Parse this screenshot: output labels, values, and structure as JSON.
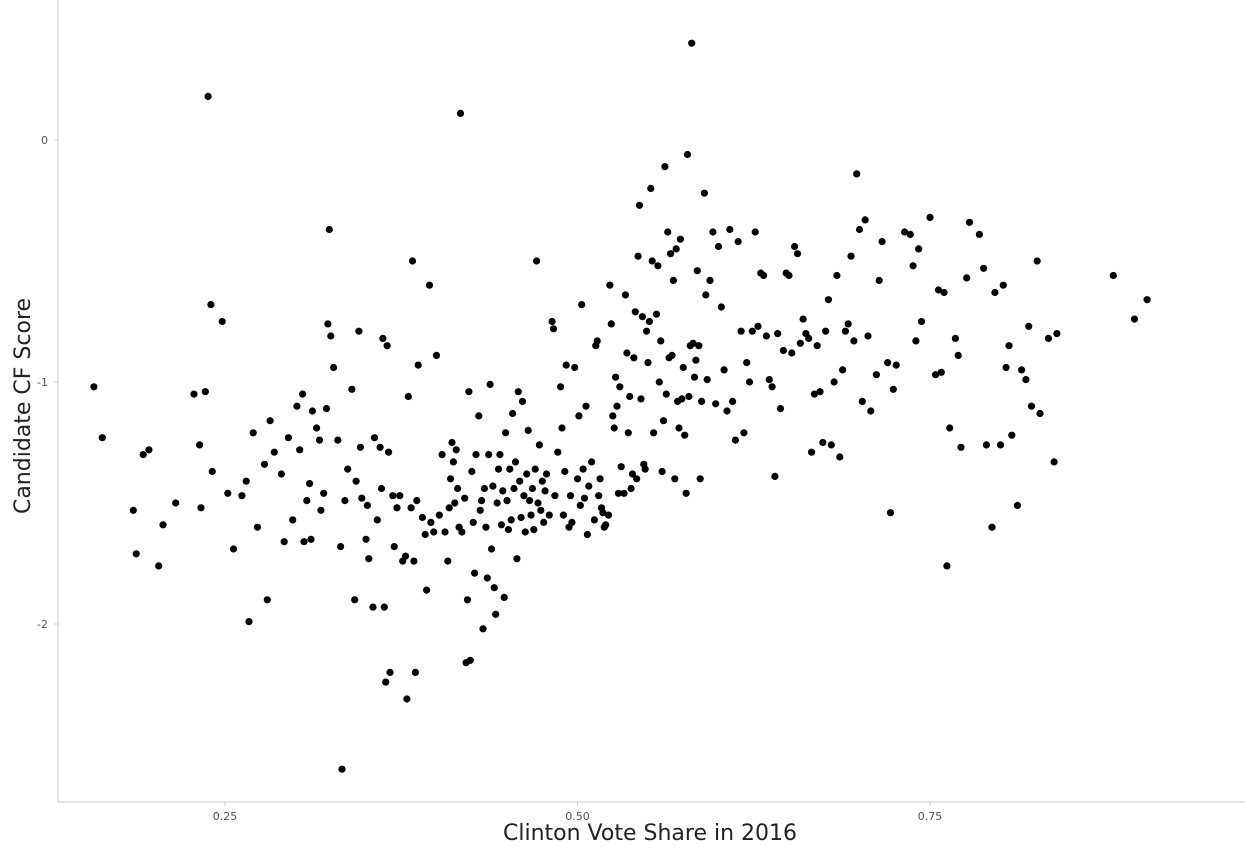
{
  "chart_data": {
    "type": "scatter",
    "title": "",
    "xlabel": "Clinton Vote Share in 2016",
    "ylabel": "Candidate CF Score",
    "xlim": [
      0.12,
      0.96
    ],
    "ylim": [
      -2.75,
      0.45
    ],
    "x_ticks": [
      0.25,
      0.5,
      0.75
    ],
    "x_tick_labels": [
      "0.25",
      "0.50",
      "0.75"
    ],
    "y_ticks": [
      0,
      -1,
      -2
    ],
    "y_tick_labels": [
      "0",
      "-1",
      "-2"
    ],
    "grid": false,
    "legend": "none",
    "point_color": "#000000",
    "points": [
      [
        0.157,
        -1.02
      ],
      [
        0.163,
        -1.23
      ],
      [
        0.185,
        -1.53
      ],
      [
        0.187,
        -1.71
      ],
      [
        0.192,
        -1.3
      ],
      [
        0.196,
        -1.28
      ],
      [
        0.203,
        -1.76
      ],
      [
        0.206,
        -1.59
      ],
      [
        0.215,
        -1.5
      ],
      [
        0.228,
        -1.05
      ],
      [
        0.232,
        -1.26
      ],
      [
        0.233,
        -1.52
      ],
      [
        0.236,
        -1.04
      ],
      [
        0.238,
        0.18
      ],
      [
        0.24,
        -0.68
      ],
      [
        0.241,
        -1.37
      ],
      [
        0.248,
        -0.75
      ],
      [
        0.252,
        -1.46
      ],
      [
        0.256,
        -1.69
      ],
      [
        0.262,
        -1.47
      ],
      [
        0.265,
        -1.41
      ],
      [
        0.267,
        -1.99
      ],
      [
        0.27,
        -1.21
      ],
      [
        0.273,
        -1.6
      ],
      [
        0.278,
        -1.34
      ],
      [
        0.28,
        -1.9
      ],
      [
        0.282,
        -1.16
      ],
      [
        0.285,
        -1.29
      ],
      [
        0.29,
        -1.38
      ],
      [
        0.292,
        -1.66
      ],
      [
        0.295,
        -1.23
      ],
      [
        0.298,
        -1.57
      ],
      [
        0.301,
        -1.1
      ],
      [
        0.303,
        -1.28
      ],
      [
        0.305,
        -1.05
      ],
      [
        0.306,
        -1.66
      ],
      [
        0.308,
        -1.49
      ],
      [
        0.31,
        -1.42
      ],
      [
        0.311,
        -1.65
      ],
      [
        0.312,
        -1.12
      ],
      [
        0.315,
        -1.19
      ],
      [
        0.317,
        -1.24
      ],
      [
        0.318,
        -1.53
      ],
      [
        0.32,
        -1.46
      ],
      [
        0.322,
        -1.11
      ],
      [
        0.323,
        -0.76
      ],
      [
        0.324,
        -0.37
      ],
      [
        0.325,
        -0.81
      ],
      [
        0.327,
        -0.94
      ],
      [
        0.33,
        -1.24
      ],
      [
        0.332,
        -1.68
      ],
      [
        0.333,
        -2.6
      ],
      [
        0.335,
        -1.49
      ],
      [
        0.337,
        -1.36
      ],
      [
        0.34,
        -1.03
      ],
      [
        0.342,
        -1.9
      ],
      [
        0.343,
        -1.41
      ],
      [
        0.345,
        -0.79
      ],
      [
        0.346,
        -1.27
      ],
      [
        0.347,
        -1.48
      ],
      [
        0.35,
        -1.65
      ],
      [
        0.351,
        -1.51
      ],
      [
        0.352,
        -1.73
      ],
      [
        0.355,
        -1.93
      ],
      [
        0.356,
        -1.23
      ],
      [
        0.358,
        -1.57
      ],
      [
        0.36,
        -1.27
      ],
      [
        0.361,
        -1.44
      ],
      [
        0.362,
        -0.82
      ],
      [
        0.363,
        -1.93
      ],
      [
        0.364,
        -2.24
      ],
      [
        0.365,
        -0.85
      ],
      [
        0.366,
        -1.29
      ],
      [
        0.367,
        -2.2
      ],
      [
        0.369,
        -1.47
      ],
      [
        0.37,
        -1.68
      ],
      [
        0.372,
        -1.52
      ],
      [
        0.374,
        -1.47
      ],
      [
        0.376,
        -1.74
      ],
      [
        0.378,
        -1.72
      ],
      [
        0.379,
        -2.31
      ],
      [
        0.38,
        -1.06
      ],
      [
        0.382,
        -1.52
      ],
      [
        0.383,
        -0.5
      ],
      [
        0.384,
        -1.74
      ],
      [
        0.385,
        -2.2
      ],
      [
        0.386,
        -1.49
      ],
      [
        0.387,
        -0.93
      ],
      [
        0.39,
        -1.56
      ],
      [
        0.392,
        -1.63
      ],
      [
        0.393,
        -1.86
      ],
      [
        0.395,
        -0.6
      ],
      [
        0.396,
        -1.58
      ],
      [
        0.398,
        -1.62
      ],
      [
        0.4,
        -0.89
      ],
      [
        0.402,
        -1.55
      ],
      [
        0.404,
        -1.3
      ],
      [
        0.406,
        -1.62
      ],
      [
        0.408,
        -1.74
      ],
      [
        0.409,
        -1.52
      ],
      [
        0.41,
        -1.4
      ],
      [
        0.411,
        -1.25
      ],
      [
        0.412,
        -1.33
      ],
      [
        0.413,
        -1.5
      ],
      [
        0.414,
        -1.28
      ],
      [
        0.415,
        -1.44
      ],
      [
        0.416,
        -1.6
      ],
      [
        0.417,
        0.11
      ],
      [
        0.418,
        -1.62
      ],
      [
        0.42,
        -1.48
      ],
      [
        0.421,
        -2.16
      ],
      [
        0.422,
        -1.9
      ],
      [
        0.423,
        -1.04
      ],
      [
        0.424,
        -2.15
      ],
      [
        0.425,
        -1.37
      ],
      [
        0.426,
        -1.58
      ],
      [
        0.427,
        -1.79
      ],
      [
        0.428,
        -1.3
      ],
      [
        0.43,
        -1.14
      ],
      [
        0.431,
        -1.53
      ],
      [
        0.432,
        -1.49
      ],
      [
        0.433,
        -2.02
      ],
      [
        0.434,
        -1.44
      ],
      [
        0.435,
        -1.6
      ],
      [
        0.436,
        -1.81
      ],
      [
        0.437,
        -1.3
      ],
      [
        0.438,
        -1.01
      ],
      [
        0.439,
        -1.69
      ],
      [
        0.44,
        -1.43
      ],
      [
        0.441,
        -1.85
      ],
      [
        0.442,
        -1.96
      ],
      [
        0.443,
        -1.5
      ],
      [
        0.444,
        -1.36
      ],
      [
        0.445,
        -1.3
      ],
      [
        0.446,
        -1.59
      ],
      [
        0.447,
        -1.45
      ],
      [
        0.448,
        -1.89
      ],
      [
        0.449,
        -1.21
      ],
      [
        0.45,
        -1.49
      ],
      [
        0.451,
        -1.61
      ],
      [
        0.452,
        -1.36
      ],
      [
        0.453,
        -1.57
      ],
      [
        0.454,
        -1.13
      ],
      [
        0.455,
        -1.44
      ],
      [
        0.456,
        -1.33
      ],
      [
        0.457,
        -1.73
      ],
      [
        0.458,
        -1.04
      ],
      [
        0.459,
        -1.41
      ],
      [
        0.46,
        -1.56
      ],
      [
        0.461,
        -1.08
      ],
      [
        0.462,
        -1.47
      ],
      [
        0.463,
        -1.62
      ],
      [
        0.464,
        -1.38
      ],
      [
        0.465,
        -1.2
      ],
      [
        0.466,
        -1.49
      ],
      [
        0.467,
        -1.55
      ],
      [
        0.468,
        -1.44
      ],
      [
        0.469,
        -1.61
      ],
      [
        0.47,
        -1.36
      ],
      [
        0.471,
        -0.5
      ],
      [
        0.472,
        -1.5
      ],
      [
        0.473,
        -1.26
      ],
      [
        0.474,
        -1.53
      ],
      [
        0.475,
        -1.41
      ],
      [
        0.476,
        -1.58
      ],
      [
        0.477,
        -1.45
      ],
      [
        0.478,
        -1.38
      ],
      [
        0.48,
        -1.55
      ],
      [
        0.482,
        -0.75
      ],
      [
        0.483,
        -0.78
      ],
      [
        0.484,
        -1.47
      ],
      [
        0.486,
        -1.29
      ],
      [
        0.488,
        -1.02
      ],
      [
        0.489,
        -1.19
      ],
      [
        0.49,
        -1.55
      ],
      [
        0.491,
        -1.37
      ],
      [
        0.492,
        -0.93
      ],
      [
        0.494,
        -1.6
      ],
      [
        0.495,
        -1.47
      ],
      [
        0.496,
        -1.58
      ],
      [
        0.498,
        -0.94
      ],
      [
        0.5,
        -1.4
      ],
      [
        0.501,
        -1.14
      ],
      [
        0.502,
        -1.51
      ],
      [
        0.503,
        -0.68
      ],
      [
        0.504,
        -1.36
      ],
      [
        0.505,
        -1.48
      ],
      [
        0.506,
        -1.1
      ],
      [
        0.507,
        -1.63
      ],
      [
        0.508,
        -1.43
      ],
      [
        0.51,
        -1.33
      ],
      [
        0.512,
        -1.57
      ],
      [
        0.513,
        -0.85
      ],
      [
        0.514,
        -0.83
      ],
      [
        0.515,
        -1.47
      ],
      [
        0.516,
        -1.4
      ],
      [
        0.517,
        -1.52
      ],
      [
        0.518,
        -1.54
      ],
      [
        0.519,
        -1.6
      ],
      [
        0.52,
        -1.59
      ],
      [
        0.522,
        -1.55
      ],
      [
        0.523,
        -0.6
      ],
      [
        0.524,
        -0.76
      ],
      [
        0.525,
        -1.14
      ],
      [
        0.526,
        -1.19
      ],
      [
        0.527,
        -0.98
      ],
      [
        0.528,
        -1.1
      ],
      [
        0.529,
        -1.46
      ],
      [
        0.53,
        -1.02
      ],
      [
        0.531,
        -1.35
      ],
      [
        0.533,
        -1.46
      ],
      [
        0.534,
        -0.64
      ],
      [
        0.535,
        -0.88
      ],
      [
        0.536,
        -1.21
      ],
      [
        0.537,
        -1.06
      ],
      [
        0.538,
        -1.44
      ],
      [
        0.539,
        -1.38
      ],
      [
        0.54,
        -0.9
      ],
      [
        0.541,
        -0.71
      ],
      [
        0.542,
        -1.4
      ],
      [
        0.543,
        -0.48
      ],
      [
        0.544,
        -0.27
      ],
      [
        0.545,
        -1.07
      ],
      [
        0.546,
        -0.73
      ],
      [
        0.547,
        -1.34
      ],
      [
        0.548,
        -1.36
      ],
      [
        0.549,
        -0.79
      ],
      [
        0.55,
        -0.92
      ],
      [
        0.551,
        -0.75
      ],
      [
        0.552,
        -0.2
      ],
      [
        0.553,
        -0.5
      ],
      [
        0.554,
        -1.21
      ],
      [
        0.556,
        -0.72
      ],
      [
        0.557,
        -0.52
      ],
      [
        0.558,
        -1.0
      ],
      [
        0.559,
        -0.83
      ],
      [
        0.56,
        -1.37
      ],
      [
        0.561,
        -1.16
      ],
      [
        0.562,
        -0.11
      ],
      [
        0.563,
        -1.05
      ],
      [
        0.564,
        -0.38
      ],
      [
        0.565,
        -0.9
      ],
      [
        0.566,
        -0.47
      ],
      [
        0.567,
        -0.89
      ],
      [
        0.568,
        -0.58
      ],
      [
        0.569,
        -1.4
      ],
      [
        0.57,
        -0.45
      ],
      [
        0.571,
        -1.08
      ],
      [
        0.572,
        -1.19
      ],
      [
        0.573,
        -0.41
      ],
      [
        0.574,
        -1.07
      ],
      [
        0.575,
        -0.94
      ],
      [
        0.576,
        -1.22
      ],
      [
        0.577,
        -1.46
      ],
      [
        0.578,
        -0.06
      ],
      [
        0.579,
        -1.06
      ],
      [
        0.58,
        -0.85
      ],
      [
        0.581,
        0.4
      ],
      [
        0.582,
        -0.84
      ],
      [
        0.583,
        -0.98
      ],
      [
        0.584,
        -0.91
      ],
      [
        0.585,
        -0.54
      ],
      [
        0.586,
        -0.85
      ],
      [
        0.587,
        -1.4
      ],
      [
        0.588,
        -1.08
      ],
      [
        0.59,
        -0.22
      ],
      [
        0.591,
        -0.64
      ],
      [
        0.592,
        -0.99
      ],
      [
        0.594,
        -0.58
      ],
      [
        0.596,
        -0.38
      ],
      [
        0.598,
        -1.09
      ],
      [
        0.6,
        -0.44
      ],
      [
        0.602,
        -0.69
      ],
      [
        0.604,
        -0.95
      ],
      [
        0.606,
        -1.12
      ],
      [
        0.608,
        -0.37
      ],
      [
        0.61,
        -1.08
      ],
      [
        0.612,
        -1.24
      ],
      [
        0.614,
        -0.42
      ],
      [
        0.616,
        -0.79
      ],
      [
        0.618,
        -1.21
      ],
      [
        0.62,
        -0.92
      ],
      [
        0.622,
        -1.0
      ],
      [
        0.624,
        -0.79
      ],
      [
        0.626,
        -0.38
      ],
      [
        0.628,
        -0.77
      ],
      [
        0.63,
        -0.55
      ],
      [
        0.632,
        -0.56
      ],
      [
        0.634,
        -0.81
      ],
      [
        0.636,
        -0.99
      ],
      [
        0.638,
        -1.02
      ],
      [
        0.64,
        -1.39
      ],
      [
        0.642,
        -0.8
      ],
      [
        0.644,
        -1.11
      ],
      [
        0.646,
        -0.87
      ],
      [
        0.648,
        -0.55
      ],
      [
        0.65,
        -0.56
      ],
      [
        0.652,
        -0.88
      ],
      [
        0.654,
        -0.44
      ],
      [
        0.656,
        -0.47
      ],
      [
        0.658,
        -0.84
      ],
      [
        0.66,
        -0.74
      ],
      [
        0.662,
        -0.8
      ],
      [
        0.664,
        -0.82
      ],
      [
        0.666,
        -1.29
      ],
      [
        0.668,
        -1.05
      ],
      [
        0.67,
        -0.85
      ],
      [
        0.672,
        -1.04
      ],
      [
        0.674,
        -1.25
      ],
      [
        0.676,
        -0.79
      ],
      [
        0.678,
        -0.66
      ],
      [
        0.68,
        -1.26
      ],
      [
        0.682,
        -1.0
      ],
      [
        0.684,
        -0.56
      ],
      [
        0.686,
        -1.31
      ],
      [
        0.688,
        -0.95
      ],
      [
        0.69,
        -0.79
      ],
      [
        0.692,
        -0.76
      ],
      [
        0.694,
        -0.48
      ],
      [
        0.696,
        -0.83
      ],
      [
        0.698,
        -0.14
      ],
      [
        0.7,
        -0.37
      ],
      [
        0.702,
        -1.08
      ],
      [
        0.704,
        -0.33
      ],
      [
        0.706,
        -0.81
      ],
      [
        0.708,
        -1.12
      ],
      [
        0.712,
        -0.97
      ],
      [
        0.714,
        -0.58
      ],
      [
        0.716,
        -0.42
      ],
      [
        0.72,
        -0.92
      ],
      [
        0.722,
        -1.54
      ],
      [
        0.724,
        -1.03
      ],
      [
        0.726,
        -0.93
      ],
      [
        0.732,
        -0.38
      ],
      [
        0.736,
        -0.39
      ],
      [
        0.738,
        -0.52
      ],
      [
        0.74,
        -0.83
      ],
      [
        0.742,
        -0.45
      ],
      [
        0.744,
        -0.75
      ],
      [
        0.75,
        -0.32
      ],
      [
        0.754,
        -0.97
      ],
      [
        0.756,
        -0.62
      ],
      [
        0.758,
        -0.96
      ],
      [
        0.76,
        -0.63
      ],
      [
        0.762,
        -1.76
      ],
      [
        0.764,
        -1.19
      ],
      [
        0.768,
        -0.82
      ],
      [
        0.77,
        -0.89
      ],
      [
        0.772,
        -1.27
      ],
      [
        0.776,
        -0.57
      ],
      [
        0.778,
        -0.34
      ],
      [
        0.785,
        -0.39
      ],
      [
        0.788,
        -0.53
      ],
      [
        0.79,
        -1.26
      ],
      [
        0.794,
        -1.6
      ],
      [
        0.796,
        -0.63
      ],
      [
        0.8,
        -1.26
      ],
      [
        0.802,
        -0.6
      ],
      [
        0.804,
        -0.94
      ],
      [
        0.806,
        -0.85
      ],
      [
        0.808,
        -1.22
      ],
      [
        0.812,
        -1.51
      ],
      [
        0.815,
        -0.95
      ],
      [
        0.818,
        -0.99
      ],
      [
        0.82,
        -0.77
      ],
      [
        0.822,
        -1.1
      ],
      [
        0.826,
        -0.5
      ],
      [
        0.828,
        -1.13
      ],
      [
        0.834,
        -0.82
      ],
      [
        0.838,
        -1.33
      ],
      [
        0.84,
        -0.8
      ],
      [
        0.88,
        -0.56
      ],
      [
        0.895,
        -0.74
      ],
      [
        0.904,
        -0.66
      ]
    ]
  }
}
